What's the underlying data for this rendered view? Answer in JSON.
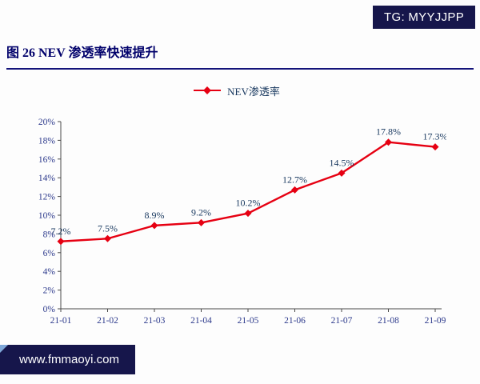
{
  "badges": {
    "top_right": "TG: MYYJJPP",
    "bottom_left": "www.fmmaoyi.com"
  },
  "title": "图 26 NEV 渗透率快速提升",
  "colors": {
    "badge_navy": "#16164b",
    "title_navy": "#00006b",
    "title_rule_navy": "#14147a",
    "badge_accent_blue": "#7fa8d9"
  },
  "chart_data": {
    "type": "line",
    "title": "",
    "legend": [
      "NEV渗透率"
    ],
    "legend_position": "top",
    "categories": [
      "21-01",
      "21-02",
      "21-03",
      "21-04",
      "21-05",
      "21-06",
      "21-07",
      "21-08",
      "21-09"
    ],
    "series": [
      {
        "name": "NEV渗透率",
        "values": [
          7.2,
          7.5,
          8.9,
          9.2,
          10.2,
          12.7,
          14.5,
          17.8,
          17.3
        ]
      }
    ],
    "data_labels": [
      "7.2%",
      "7.5%",
      "8.9%",
      "9.2%",
      "10.2%",
      "12.7%",
      "14.5%",
      "17.8%",
      "17.3%"
    ],
    "ylim": [
      0,
      20
    ],
    "y_tick_step": 2,
    "y_tick_labels": [
      "0%",
      "2%",
      "4%",
      "6%",
      "8%",
      "10%",
      "12%",
      "14%",
      "16%",
      "18%",
      "20%"
    ],
    "grid": false,
    "line_color": "#e60012",
    "marker": "diamond",
    "label_color": "#17375e",
    "tick_color": "#2d3a8c",
    "axis_color": "#4a4a4a"
  }
}
